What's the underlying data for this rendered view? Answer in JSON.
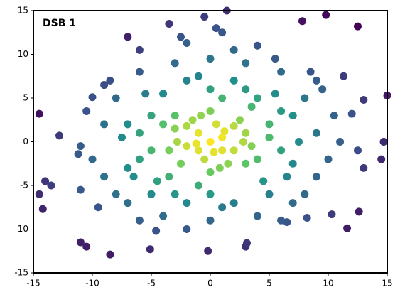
{
  "chart_data": {
    "type": "scatter",
    "title": "DSB 1",
    "title_color": "#ff0000",
    "colormap": [
      "#440154",
      "#3b528b",
      "#21918c",
      "#5ec962",
      "#fde725"
    ],
    "xlim": [
      -15,
      15
    ],
    "ylim": [
      -15,
      15
    ],
    "xticks": [
      -15,
      -10,
      -5,
      0,
      5,
      10,
      15
    ],
    "yticks": [
      -15,
      -10,
      -5,
      0,
      5,
      10,
      15
    ],
    "x": [
      -14.5,
      -14.5,
      -14.2,
      -11,
      -10.5,
      -8.5,
      -3.5,
      -0.5,
      1.4,
      0.5,
      1,
      7.8,
      9.8,
      12.5,
      15,
      14.7,
      13,
      12.6,
      11.6,
      -13.5,
      -14,
      -12.8,
      -11.2,
      -10,
      -11,
      -9.5,
      -4.6,
      -5.1,
      -0.2,
      3,
      3.1,
      6.5,
      8.2,
      10.3,
      11.3,
      12,
      14.5,
      12.5,
      13,
      9.5,
      8.5,
      -2.5,
      -2,
      -7,
      -6,
      -8.5,
      4,
      5.5,
      0,
      1,
      -1,
      2,
      -2,
      0.5,
      -0.5,
      3,
      -3,
      1.5,
      -1.5,
      2.5,
      -2.5,
      0,
      0,
      3.5,
      -3.5,
      1,
      -1,
      2,
      -2,
      0.8,
      -0.8,
      3,
      -3,
      1.2,
      -1.2,
      2.8,
      -2.8,
      0.3,
      5,
      -5,
      6,
      -6,
      4,
      -4,
      4.5,
      -4.5,
      0,
      0,
      7,
      -7,
      6.5,
      -6.5,
      2,
      -2,
      2,
      -2,
      5.5,
      -5.5,
      5,
      -5,
      7.5,
      -7.5,
      3,
      -3,
      6,
      -6,
      4,
      -4,
      1,
      -1,
      5,
      -5,
      3.5,
      -3.5,
      7,
      -7,
      1,
      -1,
      9,
      -9,
      8,
      -8,
      9,
      -9,
      3,
      -3,
      4,
      -4,
      0,
      0,
      10,
      -10,
      10.5,
      -10.5,
      6,
      -6,
      7,
      -7,
      11,
      -11,
      2,
      -2,
      8,
      -8,
      6,
      -6,
      9,
      -9
    ],
    "values": [
      3.2,
      -6,
      -7.7,
      -11.5,
      -12,
      -12.9,
      13.5,
      14.3,
      15,
      13,
      12.5,
      13.8,
      14.5,
      13.2,
      5.3,
      0,
      4.8,
      -8,
      -9.9,
      -5,
      -4.5,
      0.7,
      -1.4,
      5.1,
      -5.5,
      -7.5,
      -10.2,
      -12.3,
      -12.5,
      -12,
      -11.6,
      -9.2,
      -8.7,
      -8.3,
      7.5,
      3.2,
      -2,
      -1,
      -3,
      6,
      8,
      12,
      11.3,
      12,
      10.5,
      7,
      11,
      9.5,
      0,
      0.5,
      1,
      -1,
      -0.5,
      2,
      -2,
      1,
      1.5,
      -2.5,
      2.5,
      2.5,
      -2.5,
      3.5,
      -3.5,
      -0.5,
      -1,
      -1,
      -1,
      1.8,
      1.8,
      -3,
      3,
      -2.5,
      3,
      1.2,
      -0.2,
      0,
      0,
      -1.2,
      2,
      3,
      -1,
      -2,
      5,
      5.5,
      -4.5,
      -4.5,
      6,
      -6,
      3,
      2,
      -4,
      -4,
      7,
      7,
      -7,
      -7,
      5.5,
      5.5,
      -6,
      -6,
      0,
      0.5,
      6,
      -6,
      3.5,
      1,
      -2,
      2,
      5,
      -5,
      0.5,
      -1,
      4,
      -4,
      -2.5,
      -3,
      -7.5,
      7.5,
      1,
      2,
      5,
      5,
      -4,
      -4,
      9,
      9,
      -8.5,
      -8.5,
      9.5,
      -9,
      -2,
      -2,
      3,
      3.5,
      8,
      8,
      -7,
      -7,
      0,
      -0.5,
      10.5,
      -10,
      -6,
      -6,
      -9,
      -9,
      7,
      6.5
    ]
  }
}
